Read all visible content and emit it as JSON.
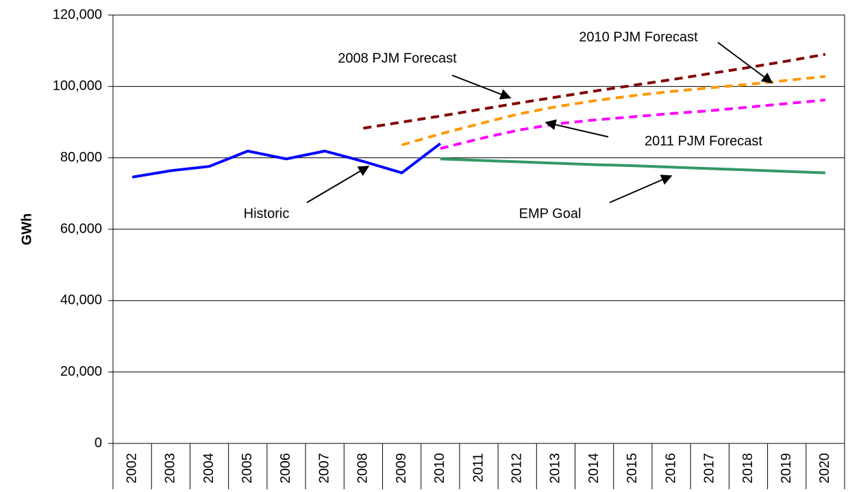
{
  "chart_data": {
    "type": "line",
    "y_label": "GWh",
    "categories": [
      "2002",
      "2003",
      "2004",
      "2005",
      "2006",
      "2007",
      "2008",
      "2009",
      "2010",
      "2011",
      "2012",
      "2013",
      "2014",
      "2015",
      "2016",
      "2017",
      "2018",
      "2019",
      "2020"
    ],
    "series": [
      {
        "name": "Historic",
        "color": "#0000ff",
        "dashed": false,
        "values": [
          74600,
          76400,
          77600,
          81900,
          79700,
          81900,
          79000,
          75800,
          84000,
          null,
          null,
          null,
          null,
          null,
          null,
          null,
          null,
          null,
          null
        ]
      },
      {
        "name": "2008 PJM Forecast",
        "color": "#800000",
        "dashed": true,
        "values": [
          null,
          null,
          null,
          null,
          null,
          null,
          88300,
          90000,
          91700,
          93500,
          95300,
          97000,
          98700,
          100300,
          101900,
          103600,
          105300,
          107100,
          109000
        ]
      },
      {
        "name": "2010 PJM Forecast",
        "color": "#ff9900",
        "dashed": true,
        "values": [
          null,
          null,
          null,
          null,
          null,
          null,
          null,
          83600,
          86700,
          89500,
          92200,
          94300,
          96000,
          97400,
          98600,
          99600,
          100600,
          101700,
          102800
        ]
      },
      {
        "name": "2011 PJM Forecast",
        "color": "#ff00ff",
        "dashed": true,
        "values": [
          null,
          null,
          null,
          null,
          null,
          null,
          null,
          null,
          82600,
          85300,
          87700,
          89500,
          90600,
          91500,
          92400,
          93200,
          94200,
          95200,
          96200
        ]
      },
      {
        "name": "EMP Goal",
        "color": "#339966",
        "dashed": false,
        "values": [
          null,
          null,
          null,
          null,
          null,
          null,
          null,
          null,
          79700,
          79300,
          78900,
          78500,
          78100,
          77800,
          77400,
          77000,
          76600,
          76200,
          75800
        ]
      }
    ],
    "ylim": [
      0,
      120000
    ],
    "yticks": [
      0,
      {
        "value": 20000,
        "label": "20,000"
      },
      {
        "value": 40000,
        "label": "40,000"
      },
      {
        "value": 60000,
        "label": "60,000"
      },
      {
        "value": 80000,
        "label": "80,000"
      },
      {
        "value": 100000,
        "label": "100,000"
      },
      {
        "value": 120000,
        "label": "120,000"
      }
    ],
    "grid": true
  }
}
